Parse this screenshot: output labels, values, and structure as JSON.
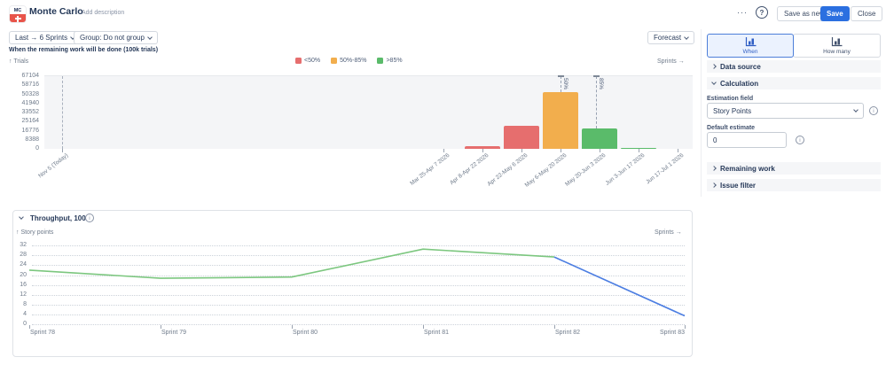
{
  "header": {
    "logo_text": "MC",
    "title": "Monte Carlo",
    "add_description": "Add description",
    "more_button": "···",
    "help_button": "?",
    "save_as_new_button": "Save as new",
    "save_button": "Save",
    "close_button": "Close"
  },
  "toolbar": {
    "sprint_filter": "Last → 6 Sprints",
    "group_filter": "Group: Do not group",
    "forecast_dropdown": "Forecast"
  },
  "panel": {
    "tabs": [
      {
        "label": "When",
        "selected": true
      },
      {
        "label": "How many",
        "selected": false
      }
    ],
    "sections": [
      {
        "label": "Data source",
        "expanded": false
      },
      {
        "label": "Calculation",
        "expanded": true
      },
      {
        "label": "Remaining work",
        "expanded": false
      },
      {
        "label": "Issue filter",
        "expanded": false
      }
    ],
    "estimation_field": {
      "label": "Estimation field",
      "value": "Story Points"
    },
    "default_estimate": {
      "label": "Default estimate",
      "value": "0"
    }
  },
  "chart_data": [
    {
      "type": "bar",
      "title": "When the remaining work will be done (100k trials)",
      "ylabel": "↑ Trials",
      "xlabel": "Sprints →",
      "ylim": [
        0,
        67104
      ],
      "y_ticks": [
        67104,
        58716,
        50328,
        41940,
        33552,
        25164,
        16776,
        8388,
        0
      ],
      "grid": false,
      "legend_position": "top",
      "categories": [
        "Mar 25-Apr 7 2026",
        "Apr 8-Apr 22 2026",
        "Apr 22-May 6 2026",
        "May 6-May 20 2026",
        "May 20-Jun 3 2026",
        "Jun 3-Jun 17 2026",
        "Jun 17-Jul 1 2026"
      ],
      "values": [
        0,
        2400,
        21500,
        52000,
        19200,
        1200,
        0
      ],
      "bar_colors": [
        "#e66e6e",
        "#e66e6e",
        "#e66e6e",
        "#f2ae4d",
        "#5abb6a",
        "#5abb6a",
        "#5abb6a"
      ],
      "legend": [
        {
          "label": "<50%",
          "color": "#e66e6e"
        },
        {
          "label": "50%-85%",
          "color": "#f2ae4d"
        },
        {
          "label": ">85%",
          "color": "#5abb6a"
        }
      ],
      "today_marker": {
        "label": "Nov 5 (Today)"
      },
      "percentile_markers": [
        {
          "label": "50%",
          "category_index": 3,
          "offset": 0.5
        },
        {
          "label": "85%",
          "category_index": 4,
          "offset": 0.41
        }
      ]
    },
    {
      "type": "line",
      "title": "Throughput, 100%",
      "ylabel": "↑ Story points",
      "xlabel": "Sprints →",
      "ylim": [
        0,
        32
      ],
      "y_ticks": [
        32,
        28,
        24,
        20,
        16,
        12,
        8,
        4,
        0
      ],
      "grid": "dotted",
      "categories": [
        "Sprint 78",
        "Sprint 79",
        "Sprint 80",
        "Sprint 81",
        "Sprint 82",
        "Sprint 83"
      ],
      "series": [
        {
          "name": "completed",
          "color": "#7cc77f",
          "points": [
            [
              0,
              22
            ],
            [
              1,
              18.7
            ],
            [
              2,
              19.2
            ],
            [
              3,
              30.5
            ],
            [
              4,
              27.3
            ]
          ]
        },
        {
          "name": "forecast",
          "color": "#4c7ee2",
          "points": [
            [
              4,
              27.3
            ],
            [
              5,
              3.5
            ]
          ]
        }
      ]
    }
  ]
}
